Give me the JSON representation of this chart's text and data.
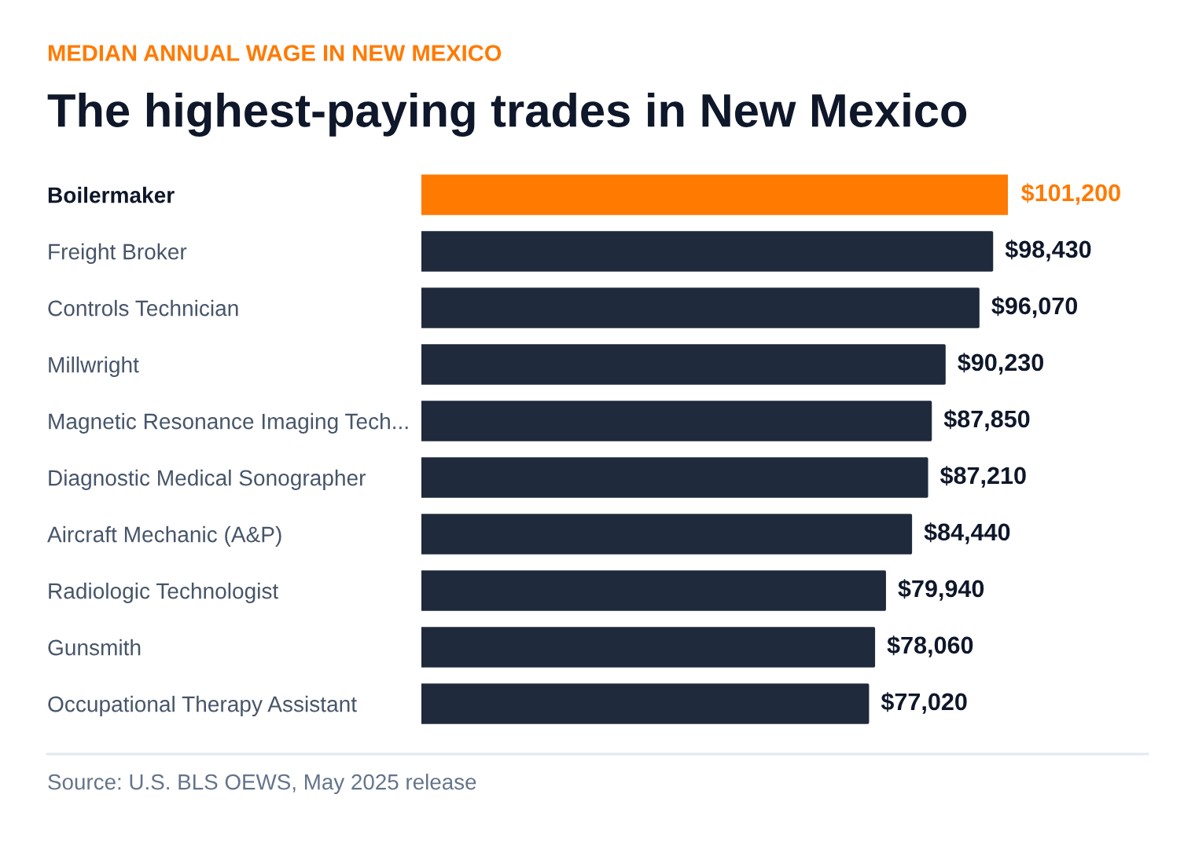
{
  "chart_data": {
    "type": "bar",
    "orientation": "horizontal",
    "subtitle": "MEDIAN ANNUAL WAGE IN NEW MEXICO",
    "title": "The highest-paying trades in New Mexico",
    "categories": [
      "Boilermaker",
      "Freight Broker",
      "Controls Technician",
      "Millwright",
      "Magnetic Resonance Imaging Tech...",
      "Diagnostic Medical Sonographer",
      "Aircraft Mechanic (A&P)",
      "Radiologic Technologist",
      "Gunsmith",
      "Occupational Therapy Assistant"
    ],
    "values": [
      101200,
      98430,
      96070,
      90230,
      87850,
      87210,
      84440,
      79940,
      78060,
      77020
    ],
    "value_labels": [
      "$101,200",
      "$98,430",
      "$96,070",
      "$90,230",
      "$87,850",
      "$87,210",
      "$84,440",
      "$79,940",
      "$78,060",
      "$77,020"
    ],
    "colors": [
      "#ff7a00",
      "#1f2a3c",
      "#1f2a3c",
      "#1f2a3c",
      "#1f2a3c",
      "#1f2a3c",
      "#1f2a3c",
      "#1f2a3c",
      "#1f2a3c",
      "#1f2a3c"
    ],
    "annotations": [
      "Source: U.S. BLS OEWS, May 2025 release"
    ]
  }
}
